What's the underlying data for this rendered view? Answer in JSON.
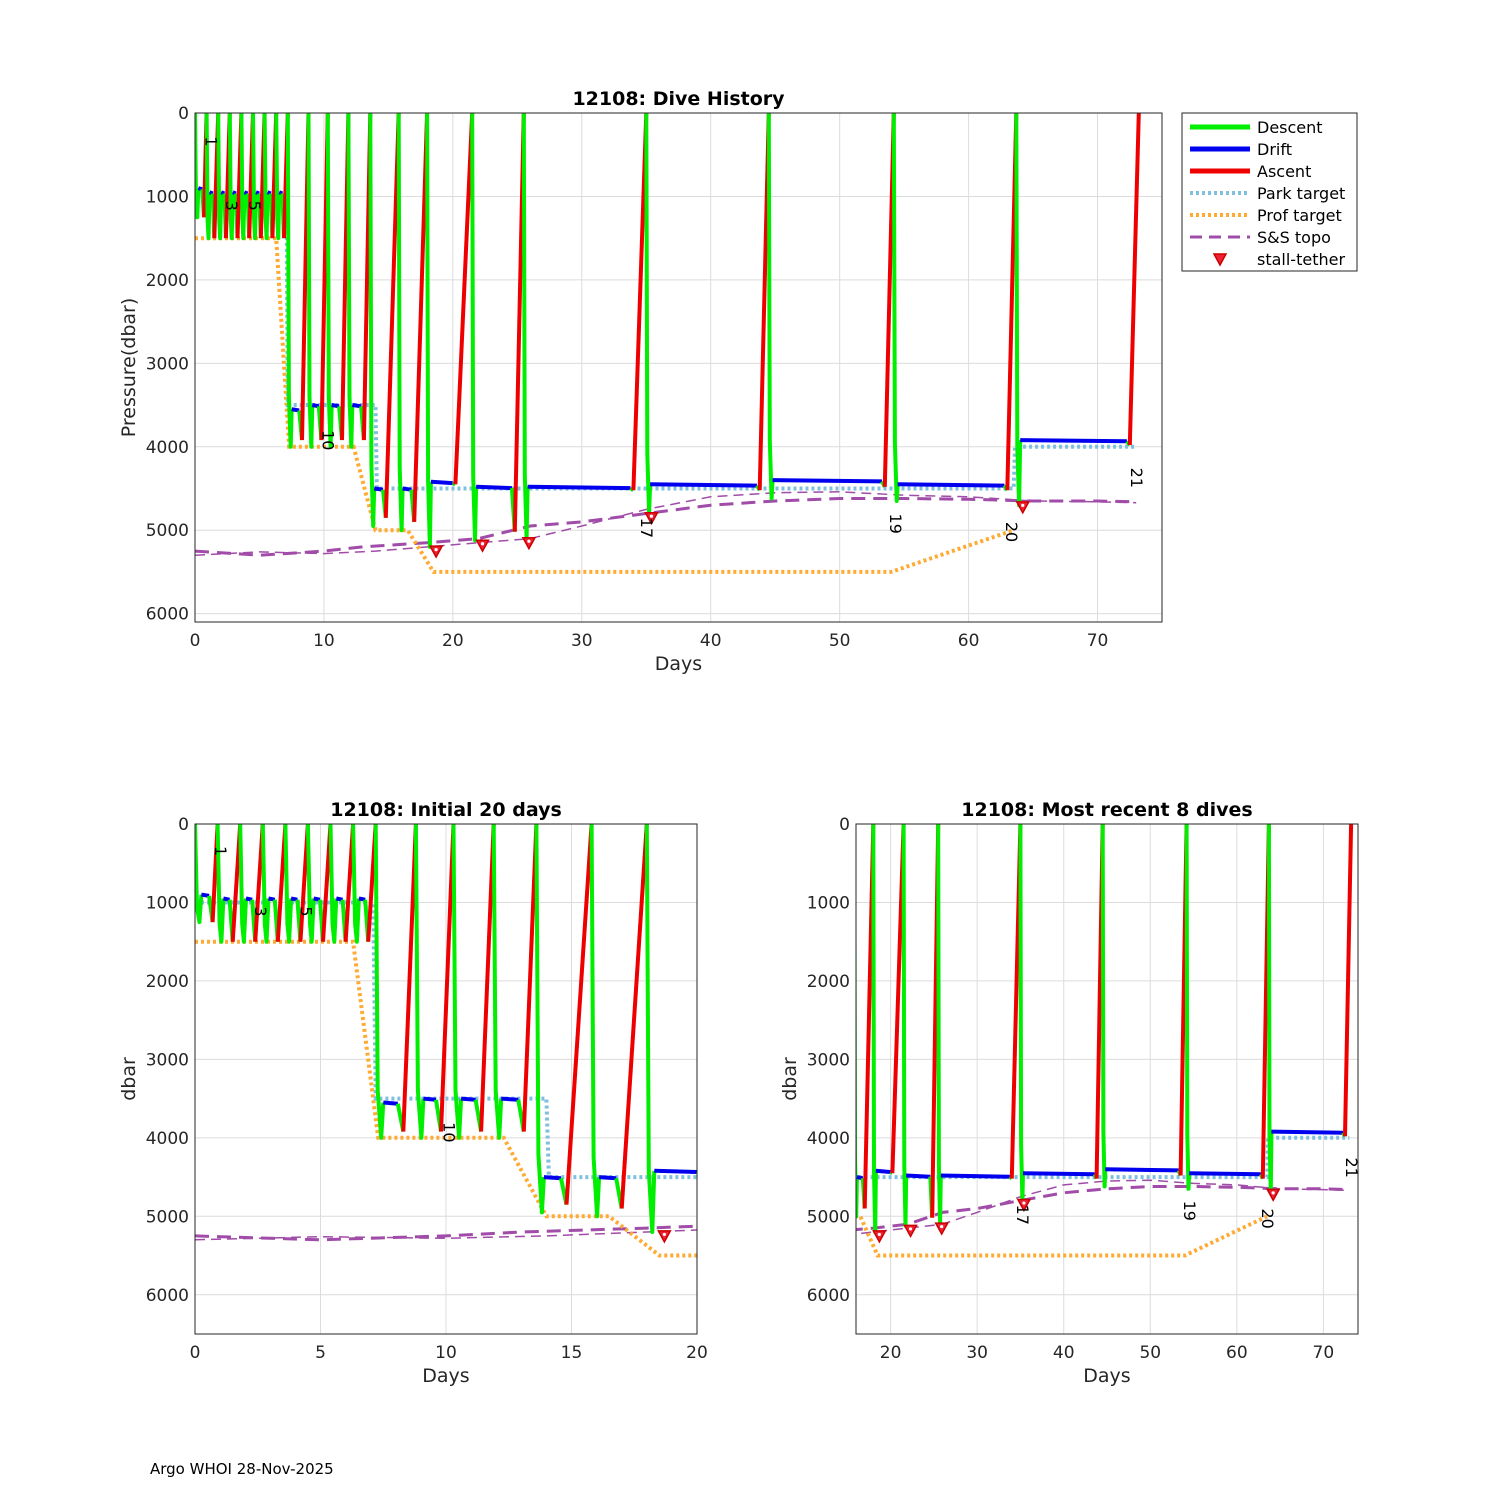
{
  "footer": "Argo WHOI 28-Nov-2025",
  "colors": {
    "descent": "#00ee00",
    "drift": "#0000ee",
    "ascent": "#ee0000",
    "park": "#7fbfdf",
    "prof": "#ffaa33",
    "topo": "#a04ca8",
    "stall": "#ee2233",
    "grid": "#dcdcdc"
  },
  "legend": [
    "Descent",
    "Drift",
    "Ascent",
    "Park target",
    "Prof target",
    "S&S topo",
    "stall-tether"
  ],
  "chart_data": [
    {
      "type": "line",
      "title": "12108: Dive History",
      "xlabel": "Days",
      "ylabel": "Pressure(dbar)",
      "xlim": [
        0,
        75
      ],
      "ylim": [
        6100,
        0
      ],
      "xticks": [
        0,
        10,
        20,
        30,
        40,
        50,
        60,
        70
      ],
      "yticks": [
        0,
        1000,
        2000,
        3000,
        4000,
        5000,
        6000
      ]
    },
    {
      "type": "line",
      "title": "12108: Initial 20 days",
      "xlabel": "Days",
      "ylabel": "dbar",
      "xlim": [
        0,
        20
      ],
      "ylim": [
        6500,
        0
      ],
      "xticks": [
        0,
        5,
        10,
        15,
        20
      ],
      "yticks": [
        0,
        1000,
        2000,
        3000,
        4000,
        5000,
        6000
      ]
    },
    {
      "type": "line",
      "title": "12108: Most recent 8 dives",
      "xlabel": "Days",
      "ylabel": "dbar",
      "xlim": [
        16,
        74
      ],
      "ylim": [
        6500,
        0
      ],
      "xticks": [
        20,
        30,
        40,
        50,
        60,
        70
      ],
      "yticks": [
        0,
        1000,
        2000,
        3000,
        4000,
        5000,
        6000
      ]
    }
  ],
  "dive_series": {
    "dives": [
      {
        "t0": 0.0,
        "park": 900,
        "bottom": 1250,
        "ascent_start": 0.7,
        "ascent_end": 0.9,
        "profile_bottom": 1250
      },
      {
        "t0": 0.9,
        "park": 950,
        "bottom": 1500,
        "ascent_start": 1.5,
        "ascent_end": 1.8,
        "profile_bottom": 1500
      },
      {
        "t0": 1.8,
        "park": 950,
        "bottom": 1500,
        "ascent_start": 2.4,
        "ascent_end": 2.7,
        "profile_bottom": 1500
      },
      {
        "t0": 2.7,
        "park": 950,
        "bottom": 1500,
        "ascent_start": 3.3,
        "ascent_end": 3.6,
        "profile_bottom": 1500
      },
      {
        "t0": 3.6,
        "park": 950,
        "bottom": 1500,
        "ascent_start": 4.2,
        "ascent_end": 4.5,
        "profile_bottom": 1500
      },
      {
        "t0": 4.5,
        "park": 950,
        "bottom": 1500,
        "ascent_start": 5.1,
        "ascent_end": 5.4,
        "profile_bottom": 1500
      },
      {
        "t0": 5.4,
        "park": 950,
        "bottom": 1500,
        "ascent_start": 6.0,
        "ascent_end": 6.3,
        "profile_bottom": 1500
      },
      {
        "t0": 6.3,
        "park": 950,
        "bottom": 1500,
        "ascent_start": 6.9,
        "ascent_end": 7.2,
        "profile_bottom": 1500
      },
      {
        "t0": 7.2,
        "park": 3550,
        "bottom": 4000,
        "ascent_start": 8.3,
        "ascent_end": 8.8,
        "profile_bottom": 3550
      },
      {
        "t0": 8.8,
        "park": 3500,
        "bottom": 4000,
        "ascent_start": 9.8,
        "ascent_end": 10.3,
        "profile_bottom": 3500
      },
      {
        "t0": 10.3,
        "park": 3500,
        "bottom": 4000,
        "ascent_start": 11.4,
        "ascent_end": 11.9,
        "profile_bottom": 3500
      },
      {
        "t0": 11.9,
        "park": 3500,
        "bottom": 4000,
        "ascent_start": 13.1,
        "ascent_end": 13.6,
        "profile_bottom": 3500
      },
      {
        "t0": 13.6,
        "park": 4500,
        "bottom": 4950,
        "ascent_start": 14.8,
        "ascent_end": 15.8,
        "profile_bottom": 4500
      },
      {
        "t0": 15.8,
        "park": 4500,
        "bottom": 5000,
        "ascent_start": 17.0,
        "ascent_end": 18.0,
        "profile_bottom": 4500
      },
      {
        "t0": 18.0,
        "park": 4420,
        "bottom": 5200,
        "ascent_start": 20.2,
        "ascent_end": 21.5,
        "profile_bottom": 4450
      },
      {
        "t0": 21.5,
        "park": 4480,
        "bottom": 5120,
        "ascent_start": 24.8,
        "ascent_end": 25.5,
        "profile_bottom": 4480
      },
      {
        "t0": 25.5,
        "park": 4480,
        "bottom": 5100,
        "ascent_start": 34.0,
        "ascent_end": 35.0,
        "profile_bottom": 4520
      },
      {
        "t0": 35.0,
        "park": 4450,
        "bottom": 4800,
        "ascent_start": 43.8,
        "ascent_end": 44.5,
        "profile_bottom": 4520
      },
      {
        "t0": 44.5,
        "park": 4400,
        "bottom": 4620,
        "ascent_start": 53.5,
        "ascent_end": 54.2,
        "profile_bottom": 4480
      },
      {
        "t0": 54.2,
        "park": 4450,
        "bottom": 4650,
        "ascent_start": 63.0,
        "ascent_end": 63.7,
        "profile_bottom": 4520
      },
      {
        "t0": 63.7,
        "park": 3920,
        "bottom": 4700,
        "ascent_start": 72.5,
        "ascent_end": 73.2,
        "profile_bottom": 3980
      }
    ],
    "park_target": [
      [
        0,
        1000
      ],
      [
        7.1,
        1000
      ],
      [
        7.2,
        3500
      ],
      [
        14.0,
        3500
      ],
      [
        14.1,
        4500
      ],
      [
        63.5,
        4500
      ],
      [
        63.6,
        4000
      ],
      [
        73.0,
        4000
      ]
    ],
    "prof_target": [
      [
        0,
        1500
      ],
      [
        6.3,
        1500
      ],
      [
        7.3,
        4000
      ],
      [
        12.3,
        4000
      ],
      [
        14.0,
        5000
      ],
      [
        16.5,
        5000
      ],
      [
        18.5,
        5500
      ],
      [
        54.0,
        5500
      ],
      [
        63.5,
        5000
      ]
    ],
    "topo_a": [
      [
        0,
        5250
      ],
      [
        5,
        5300
      ],
      [
        10,
        5250
      ],
      [
        13,
        5200
      ],
      [
        18,
        5150
      ],
      [
        22,
        5100
      ],
      [
        26,
        4950
      ],
      [
        30,
        4900
      ],
      [
        35,
        4800
      ],
      [
        40,
        4700
      ],
      [
        45,
        4650
      ],
      [
        50,
        4620
      ],
      [
        55,
        4620
      ],
      [
        60,
        4630
      ],
      [
        65,
        4650
      ],
      [
        70,
        4650
      ],
      [
        73,
        4660
      ]
    ],
    "topo_b": [
      [
        0,
        5300
      ],
      [
        5,
        5260
      ],
      [
        10,
        5280
      ],
      [
        14,
        5250
      ],
      [
        18,
        5200
      ],
      [
        22,
        5150
      ],
      [
        26,
        5100
      ],
      [
        30,
        4950
      ],
      [
        35,
        4750
      ],
      [
        40,
        4600
      ],
      [
        45,
        4550
      ],
      [
        50,
        4540
      ],
      [
        55,
        4580
      ],
      [
        60,
        4600
      ],
      [
        65,
        4650
      ],
      [
        70,
        4660
      ],
      [
        73,
        4670
      ]
    ],
    "stall_tether": [
      [
        18.7,
        5250
      ],
      [
        22.3,
        5180
      ],
      [
        25.9,
        5150
      ],
      [
        35.4,
        4850
      ],
      [
        64.2,
        4720
      ]
    ],
    "cycle_labels": [
      {
        "text": "1",
        "x": 0.8,
        "y": 280
      },
      {
        "text": "3",
        "x": 2.4,
        "y": 1050
      },
      {
        "text": "5",
        "x": 4.2,
        "y": 1050
      },
      {
        "text": "10",
        "x": 9.9,
        "y": 3800
      },
      {
        "text": "17",
        "x": 34.6,
        "y": 4850
      },
      {
        "text": "19",
        "x": 53.9,
        "y": 4800
      },
      {
        "text": "20",
        "x": 62.9,
        "y": 4900
      },
      {
        "text": "21",
        "x": 72.6,
        "y": 4250
      }
    ]
  }
}
